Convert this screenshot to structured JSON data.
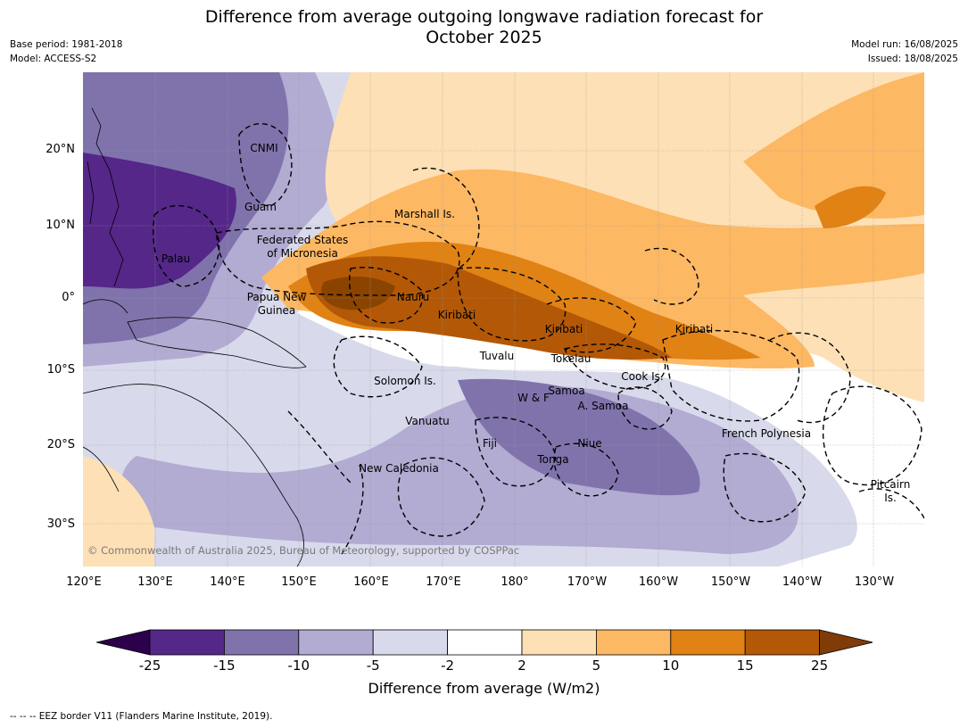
{
  "title_line1": "Difference from average outgoing longwave radiation forecast for",
  "title_line2": "October 2025",
  "meta": {
    "base_period": "Base period: 1981-2018",
    "model": "Model: ACCESS-S2",
    "model_run": "Model run: 16/08/2025",
    "issued": "Issued: 18/08/2025"
  },
  "lat_labels": [
    "20°N",
    "10°N",
    "0°",
    "10°S",
    "20°S",
    "30°S"
  ],
  "lon_labels": [
    "120°E",
    "130°E",
    "140°E",
    "150°E",
    "160°E",
    "170°E",
    "180°",
    "170°W",
    "160°W",
    "150°W",
    "140°W",
    "130°W"
  ],
  "places": {
    "cnmi": "CNMI",
    "guam": "Guam",
    "marshall": "Marshall Is.",
    "fsm_line1": "Federated States",
    "fsm_line2": "of Micronesia",
    "palau": "Palau",
    "png_line1": "Papua New",
    "png_line2": "Guinea",
    "nauru": "Nauru",
    "kiribati_west": "Kiribati",
    "kiribati_central": "Kiribati",
    "kiribati_east": "Kiribati",
    "tuvalu": "Tuvalu",
    "tokelau": "Tokelau",
    "cook": "Cook Is.",
    "solomon": "Solomon Is.",
    "wf": "W & F",
    "samoa": "Samoa",
    "asamoa": "A. Samoa",
    "vanuatu": "Vanuatu",
    "fiji": "Fiji",
    "niue": "Niue",
    "tonga": "Tonga",
    "french_polynesia": "French Polynesia",
    "new_caledonia": "New Caledonia",
    "pitcairn_line1": "Pitcairn",
    "pitcairn_line2": "Is."
  },
  "copyright": "© Commonwealth of Australia 2025, Bureau of Meteorology, supported by COSPPac",
  "colorbar": {
    "ticks": [
      "-25",
      "-15",
      "-10",
      "-5",
      "-2",
      "2",
      "5",
      "10",
      "15",
      "25"
    ],
    "colors": [
      "#542788",
      "#8073ac",
      "#b2abd2",
      "#d8daeb",
      "#ffffff",
      "#fee0b6",
      "#fdb863",
      "#e08214",
      "#b35806"
    ],
    "extend_low_color": "#2d004b",
    "extend_high_color": "#7f3b08",
    "label": "Difference from average (W/m2)"
  },
  "footnote": "--  --  -- EEZ border V11 (Flanders Marine Institute, 2019)."
}
